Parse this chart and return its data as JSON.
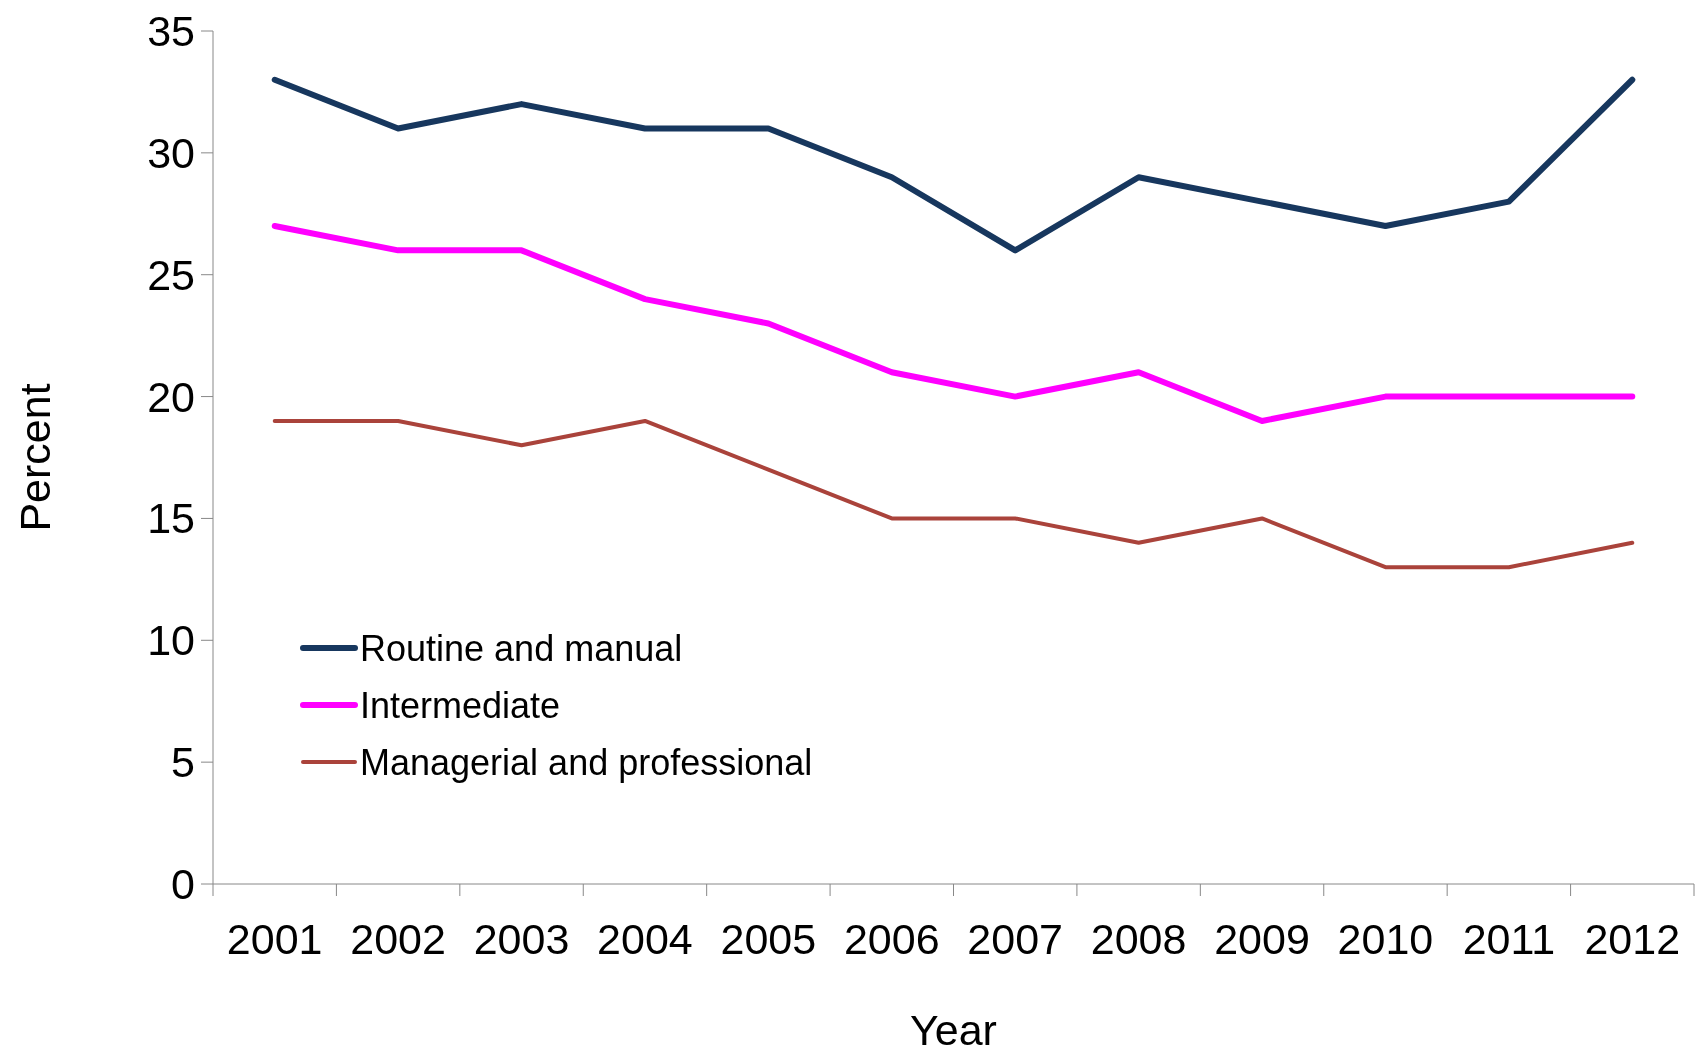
{
  "chart_data": {
    "type": "line",
    "xlabel": "Year",
    "ylabel": "Percent",
    "categories": [
      "2001",
      "2002",
      "2003",
      "2004",
      "2005",
      "2006",
      "2007",
      "2008",
      "2009",
      "2010",
      "2011",
      "2012"
    ],
    "series": [
      {
        "name": "Routine and manual",
        "color": "#17375e",
        "values": [
          33,
          31,
          32,
          31,
          31,
          29,
          26,
          29,
          28,
          27,
          28,
          33
        ]
      },
      {
        "name": "Intermediate",
        "color": "#ff00ff",
        "values": [
          27,
          26,
          26,
          24,
          23,
          21,
          20,
          21,
          19,
          20,
          20,
          20
        ]
      },
      {
        "name": "Managerial and professional",
        "color": "#aa433b",
        "values": [
          19,
          19,
          18,
          19,
          17,
          15,
          15,
          14,
          15,
          13,
          13,
          14
        ]
      }
    ],
    "ylim": [
      0,
      35
    ],
    "yticks": [
      0,
      5,
      10,
      15,
      20,
      25,
      30,
      35
    ],
    "grid": false,
    "legend": "bottom left",
    "marker": "none",
    "line_style": "solid"
  }
}
